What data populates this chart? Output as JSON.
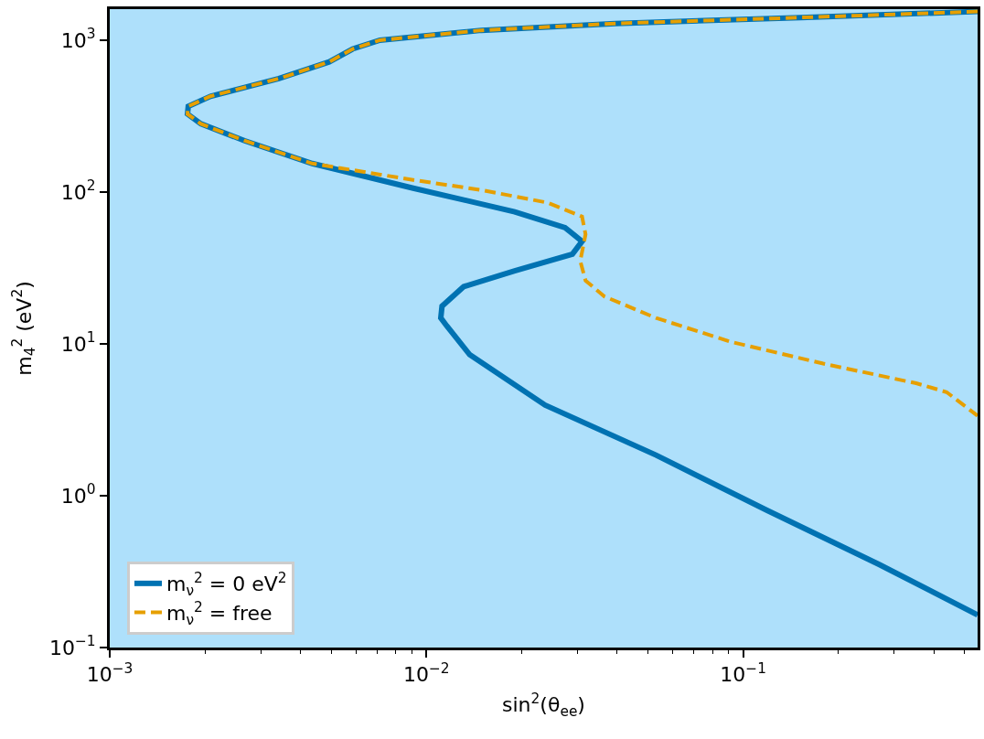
{
  "chart_data": {
    "type": "line",
    "xlabel": "sin$^{2}$(θ$_{ee}$)",
    "ylabel": "m$_{4}$$^{2}$ (eV$^{2}$)",
    "log": "xy",
    "grid": false,
    "legend": "bottom left",
    "xlim": [
      0.001,
      0.55
    ],
    "ylim": [
      0.1,
      1600
    ],
    "xticks": [
      {
        "value": 0.001,
        "label": "10$^{−3}$"
      },
      {
        "value": 0.002,
        "label": null
      },
      {
        "value": 0.003,
        "label": null
      },
      {
        "value": 0.004,
        "label": null
      },
      {
        "value": 0.005,
        "label": null
      },
      {
        "value": 0.006,
        "label": null
      },
      {
        "value": 0.007,
        "label": null
      },
      {
        "value": 0.008,
        "label": null
      },
      {
        "value": 0.009,
        "label": null
      },
      {
        "value": 0.01,
        "label": "10$^{−2}$"
      },
      {
        "value": 0.02,
        "label": null
      },
      {
        "value": 0.03,
        "label": null
      },
      {
        "value": 0.04,
        "label": null
      },
      {
        "value": 0.05,
        "label": null
      },
      {
        "value": 0.06,
        "label": null
      },
      {
        "value": 0.07,
        "label": null
      },
      {
        "value": 0.08,
        "label": null
      },
      {
        "value": 0.09,
        "label": null
      },
      {
        "value": 0.1,
        "label": "10$^{−1}$"
      },
      {
        "value": 0.2,
        "label": null
      },
      {
        "value": 0.3,
        "label": null
      },
      {
        "value": 0.4,
        "label": null
      },
      {
        "value": 0.5,
        "label": null
      }
    ],
    "yticks": [
      {
        "value": 0.1,
        "label": "10$^{−1}$"
      },
      {
        "value": 1,
        "label": "10$^{0}$"
      },
      {
        "value": 10,
        "label": "10$^{1}$"
      },
      {
        "value": 100,
        "label": "10$^{2}$"
      },
      {
        "value": 1000,
        "label": "10$^{3}$"
      }
    ],
    "series": [
      {
        "name": "m$_{ν}$$^{2}$ = 0 eV$^{2}$",
        "color": "#0072b2",
        "line_style": "solid",
        "x": [
          0.55,
          0.152,
          0.0395,
          0.0149,
          0.00713,
          0.00585,
          0.00493,
          0.00342,
          0.00208,
          0.00177,
          0.00176,
          0.00194,
          0.00266,
          0.00436,
          0.00908,
          0.019,
          0.0274,
          0.031,
          0.0289,
          0.019,
          0.0131,
          0.0112,
          0.0111,
          0.0116,
          0.0137,
          0.0237,
          0.0531,
          0.119,
          0.27,
          0.55
        ],
        "values": [
          1543,
          1409,
          1288,
          1161,
          1000,
          875,
          719,
          558,
          427,
          367,
          326,
          281,
          218,
          154,
          106,
          74.1,
          58.3,
          47.3,
          39.0,
          30.3,
          23.8,
          17.7,
          14.8,
          13.1,
          8.49,
          3.95,
          1.85,
          0.8,
          0.351,
          0.164
        ]
      },
      {
        "name": "m$_{ν}$$^{2}$ = free",
        "color": "#e69f00",
        "line_style": "dashed",
        "x": [
          0.55,
          0.152,
          0.0395,
          0.0149,
          0.00713,
          0.00585,
          0.00493,
          0.00342,
          0.00208,
          0.00177,
          0.00176,
          0.00194,
          0.00266,
          0.00436,
          0.00908,
          0.0149,
          0.0242,
          0.031,
          0.0318,
          0.0306,
          0.0318,
          0.0365,
          0.0531,
          0.0916,
          0.179,
          0.352,
          0.439,
          0.55
        ],
        "values": [
          1543,
          1409,
          1288,
          1161,
          1000,
          875,
          719,
          558,
          427,
          367,
          326,
          281,
          218,
          154,
          120,
          103,
          84.9,
          68.9,
          52.6,
          35.1,
          26.1,
          20.5,
          14.8,
          10.3,
          7.41,
          5.5,
          4.81,
          3.36
        ]
      }
    ]
  }
}
